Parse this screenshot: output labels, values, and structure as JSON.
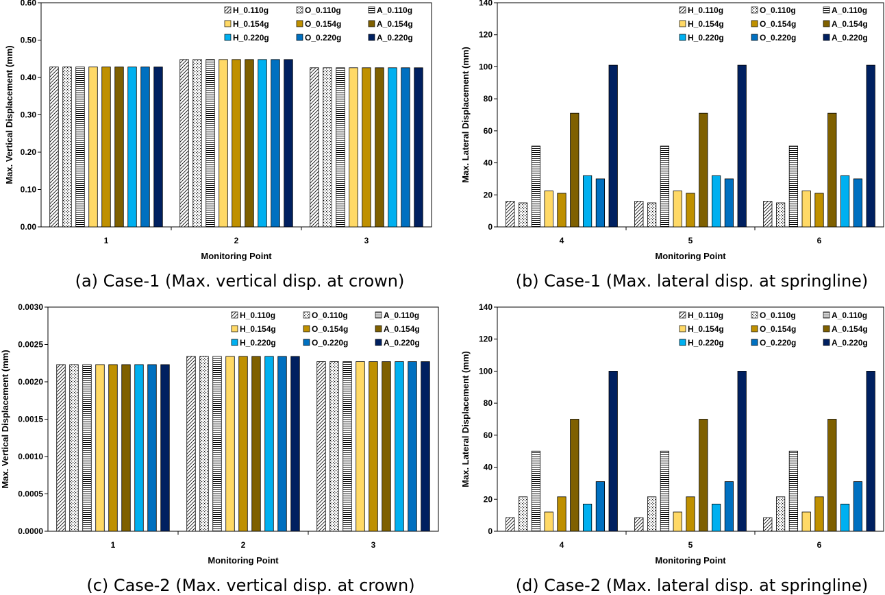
{
  "styles": {
    "H_0.110g": {
      "fill": "url(#pat-diag)"
    },
    "O_0.110g": {
      "fill": "url(#pat-dots)"
    },
    "A_0.110g": {
      "fill": "url(#pat-horiz)"
    },
    "H_0.154g": {
      "fill": "#FFD966"
    },
    "O_0.154g": {
      "fill": "#BF9000"
    },
    "A_0.154g": {
      "fill": "#7F6000"
    },
    "H_0.220g": {
      "fill": "#00B0F0"
    },
    "O_0.220g": {
      "fill": "#0070C0"
    },
    "A_0.220g": {
      "fill": "#002060"
    }
  },
  "chart_data": [
    {
      "type": "bar",
      "caption": "(a) Case-1 (Max. vertical disp. at crown)",
      "xlabel": "Monitoring Point",
      "ylabel": "Max. Vertical Displacement (mm)",
      "ylim": [
        0,
        0.6
      ],
      "yticks": [
        "0.00",
        "0.10",
        "0.20",
        "0.30",
        "0.40",
        "0.50",
        "0.60"
      ],
      "categories": [
        "1",
        "2",
        "3"
      ],
      "legend_position": "top-right",
      "series": [
        {
          "name": "H_0.110g",
          "values": [
            0.428,
            0.448,
            0.426
          ]
        },
        {
          "name": "O_0.110g",
          "values": [
            0.428,
            0.448,
            0.426
          ]
        },
        {
          "name": "A_0.110g",
          "values": [
            0.428,
            0.448,
            0.426
          ]
        },
        {
          "name": "H_0.154g",
          "values": [
            0.428,
            0.448,
            0.426
          ]
        },
        {
          "name": "O_0.154g",
          "values": [
            0.428,
            0.448,
            0.426
          ]
        },
        {
          "name": "A_0.154g",
          "values": [
            0.428,
            0.448,
            0.426
          ]
        },
        {
          "name": "H_0.220g",
          "values": [
            0.428,
            0.448,
            0.426
          ]
        },
        {
          "name": "O_0.220g",
          "values": [
            0.428,
            0.448,
            0.426
          ]
        },
        {
          "name": "A_0.220g",
          "values": [
            0.428,
            0.448,
            0.426
          ]
        }
      ]
    },
    {
      "type": "bar",
      "caption": "(b) Case-1 (Max. lateral disp. at springline)",
      "xlabel": "Monitoring Point",
      "ylabel": "Max. Lateral Displacement (mm)",
      "ylim": [
        0,
        140
      ],
      "yticks": [
        "0",
        "20",
        "40",
        "60",
        "80",
        "100",
        "120",
        "140"
      ],
      "categories": [
        "4",
        "5",
        "6"
      ],
      "legend_position": "top-right",
      "series": [
        {
          "name": "H_0.110g",
          "values": [
            16,
            16,
            16
          ]
        },
        {
          "name": "O_0.110g",
          "values": [
            15,
            15,
            15
          ]
        },
        {
          "name": "A_0.110g",
          "values": [
            50.5,
            50.5,
            50.5
          ]
        },
        {
          "name": "H_0.154g",
          "values": [
            22.5,
            22.5,
            22.5
          ]
        },
        {
          "name": "O_0.154g",
          "values": [
            21,
            21,
            21
          ]
        },
        {
          "name": "A_0.154g",
          "values": [
            71,
            71,
            71
          ]
        },
        {
          "name": "H_0.220g",
          "values": [
            32,
            32,
            32
          ]
        },
        {
          "name": "O_0.220g",
          "values": [
            30,
            30,
            30
          ]
        },
        {
          "name": "A_0.220g",
          "values": [
            101,
            101,
            101
          ]
        }
      ]
    },
    {
      "type": "bar",
      "caption": "(c) Case-2 (Max. vertical disp. at crown)",
      "xlabel": "Monitoring Point",
      "ylabel": "Max. Vertical Displacement (mm)",
      "ylim": [
        0,
        0.003
      ],
      "yticks": [
        "0.0000",
        "0.0005",
        "0.0010",
        "0.0015",
        "0.0020",
        "0.0025",
        "0.0030"
      ],
      "categories": [
        "1",
        "2",
        "3"
      ],
      "legend_position": "top-right",
      "series": [
        {
          "name": "H_0.110g",
          "values": [
            0.00223,
            0.00234,
            0.00227
          ]
        },
        {
          "name": "O_0.110g",
          "values": [
            0.00223,
            0.00234,
            0.00227
          ]
        },
        {
          "name": "A_0.110g",
          "values": [
            0.00223,
            0.00234,
            0.00227
          ]
        },
        {
          "name": "H_0.154g",
          "values": [
            0.00223,
            0.00234,
            0.00227
          ]
        },
        {
          "name": "O_0.154g",
          "values": [
            0.00223,
            0.00234,
            0.00227
          ]
        },
        {
          "name": "A_0.154g",
          "values": [
            0.00223,
            0.00234,
            0.00227
          ]
        },
        {
          "name": "H_0.220g",
          "values": [
            0.00223,
            0.00234,
            0.00227
          ]
        },
        {
          "name": "O_0.220g",
          "values": [
            0.00223,
            0.00234,
            0.00227
          ]
        },
        {
          "name": "A_0.220g",
          "values": [
            0.00223,
            0.00234,
            0.00227
          ]
        }
      ]
    },
    {
      "type": "bar",
      "caption": "(d) Case-2 (Max. lateral disp. at springline)",
      "xlabel": "Monitoring Point",
      "ylabel": "Max. Lateral Displacement (mm)",
      "ylim": [
        0,
        140
      ],
      "yticks": [
        "0",
        "20",
        "40",
        "60",
        "80",
        "100",
        "120",
        "140"
      ],
      "categories": [
        "4",
        "5",
        "6"
      ],
      "legend_position": "top-right",
      "series": [
        {
          "name": "H_0.110g",
          "values": [
            8.5,
            8.5,
            8.5
          ]
        },
        {
          "name": "O_0.110g",
          "values": [
            21.5,
            21.5,
            21.5
          ]
        },
        {
          "name": "A_0.110g",
          "values": [
            50,
            50,
            50
          ]
        },
        {
          "name": "H_0.154g",
          "values": [
            12,
            12,
            12
          ]
        },
        {
          "name": "O_0.154g",
          "values": [
            21.5,
            21.5,
            21.5
          ]
        },
        {
          "name": "A_0.154g",
          "values": [
            70,
            70,
            70
          ]
        },
        {
          "name": "H_0.220g",
          "values": [
            17,
            17,
            17
          ]
        },
        {
          "name": "O_0.220g",
          "values": [
            31,
            31,
            31
          ]
        },
        {
          "name": "A_0.220g",
          "values": [
            100,
            100,
            100
          ]
        }
      ]
    }
  ]
}
